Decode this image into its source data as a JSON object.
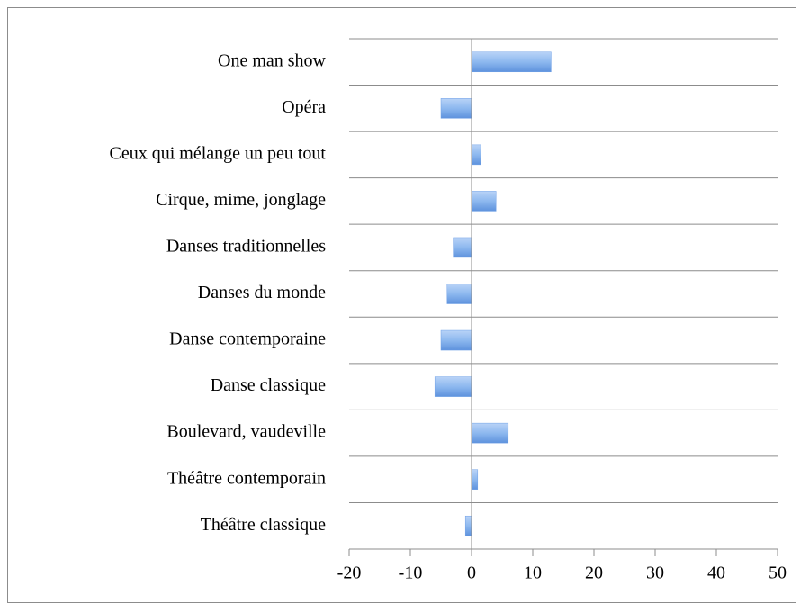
{
  "chart_data": {
    "type": "bar",
    "orientation": "horizontal",
    "categories": [
      "One man show",
      "Opéra",
      "Ceux qui mélange un peu tout",
      "Cirque, mime, jonglage",
      "Danses traditionnelles",
      "Danses du monde",
      "Danse contemporaine",
      "Danse classique",
      "Boulevard, vaudeville",
      "Théâtre contemporain",
      "Théâtre classique"
    ],
    "values": [
      13,
      -5,
      1.5,
      4,
      -3,
      -4,
      -5,
      -6,
      6,
      1,
      -1
    ],
    "color": "#6fa0e6",
    "xlim": [
      -20,
      50
    ],
    "xticks": [
      -20,
      -10,
      0,
      10,
      20,
      30,
      40,
      50
    ],
    "grid": true
  }
}
